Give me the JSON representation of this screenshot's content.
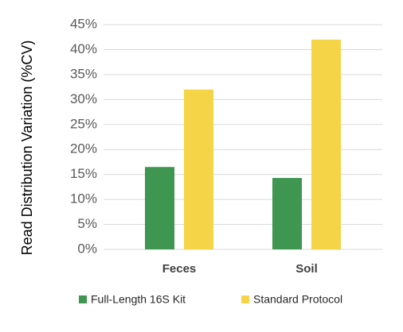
{
  "chart_data": {
    "type": "bar",
    "y_axis_label": "Read Distribution Variation (%CV)",
    "categories": [
      "Feces",
      "Soil"
    ],
    "series": [
      {
        "name": "Full-Length 16S Kit",
        "color": "#3e9651",
        "values": [
          16.5,
          14.3
        ]
      },
      {
        "name": "Standard Protocol",
        "color": "#f5d547",
        "values": [
          32,
          42
        ]
      }
    ],
    "ylim": [
      0,
      45
    ],
    "yticks": [
      {
        "value": 0,
        "label": "0%"
      },
      {
        "value": 5,
        "label": "5%"
      },
      {
        "value": 10,
        "label": "10%"
      },
      {
        "value": 15,
        "label": "15%"
      },
      {
        "value": 20,
        "label": "20%"
      },
      {
        "value": 25,
        "label": "25%"
      },
      {
        "value": 30,
        "label": "30%"
      },
      {
        "value": 35,
        "label": "35%"
      },
      {
        "value": 40,
        "label": "40%"
      },
      {
        "value": 45,
        "label": "45%"
      }
    ],
    "grid": true,
    "legend": "bottom"
  }
}
